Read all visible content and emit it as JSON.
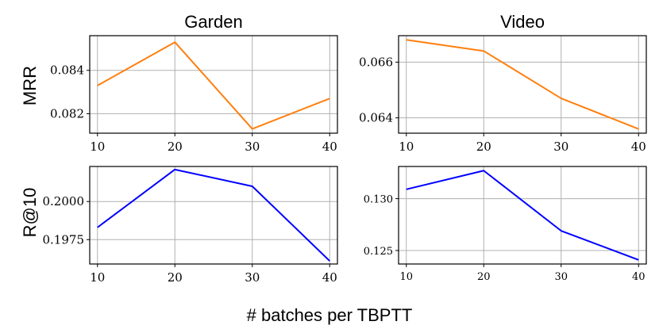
{
  "figure": {
    "xlabel": "# batches per TBPTT",
    "row_labels": [
      "MRR",
      "R@10"
    ],
    "column_titles": [
      "Garden",
      "Video"
    ]
  },
  "chart_data": [
    {
      "type": "line",
      "title": "Garden",
      "ylabel": "MRR",
      "x": [
        10,
        20,
        30,
        40
      ],
      "series": [
        {
          "values": [
            0.0833,
            0.0853,
            0.0813,
            0.0827
          ],
          "color": "#ff7f0e"
        }
      ],
      "xlim": [
        9,
        41
      ],
      "ylim": [
        0.0811,
        0.0856
      ],
      "xticks": [
        10,
        20,
        30,
        40
      ],
      "yticks": [
        0.082,
        0.084
      ],
      "ytick_labels": [
        "0.082",
        "0.084"
      ],
      "grid": true
    },
    {
      "type": "line",
      "title": "Video",
      "ylabel": "",
      "x": [
        10,
        20,
        30,
        40
      ],
      "series": [
        {
          "values": [
            0.0668,
            0.0664,
            0.0647,
            0.0636
          ],
          "color": "#ff7f0e"
        }
      ],
      "xlim": [
        9,
        41
      ],
      "ylim": [
        0.06345,
        0.06695
      ],
      "xticks": [
        10,
        20,
        30,
        40
      ],
      "yticks": [
        0.064,
        0.066
      ],
      "ytick_labels": [
        "0.064",
        "0.066"
      ],
      "grid": true
    },
    {
      "type": "line",
      "title": "",
      "ylabel": "R@10",
      "x": [
        10,
        20,
        30,
        40
      ],
      "series": [
        {
          "values": [
            0.1983,
            0.2021,
            0.201,
            0.1961
          ],
          "color": "#0000ff"
        }
      ],
      "xlim": [
        9,
        41
      ],
      "ylim": [
        0.1959,
        0.2023
      ],
      "xticks": [
        10,
        20,
        30,
        40
      ],
      "yticks": [
        0.1975,
        0.2
      ],
      "ytick_labels": [
        "0.1975",
        "0.2000"
      ],
      "grid": true
    },
    {
      "type": "line",
      "title": "",
      "ylabel": "",
      "x": [
        10,
        20,
        30,
        40
      ],
      "series": [
        {
          "values": [
            0.1309,
            0.1327,
            0.1269,
            0.1241
          ],
          "color": "#0000ff"
        }
      ],
      "xlim": [
        9,
        41
      ],
      "ylim": [
        0.1237,
        0.1331
      ],
      "xticks": [
        10,
        20,
        30,
        40
      ],
      "yticks": [
        0.125,
        0.13
      ],
      "ytick_labels": [
        "0.125",
        "0.130"
      ],
      "grid": true
    }
  ]
}
